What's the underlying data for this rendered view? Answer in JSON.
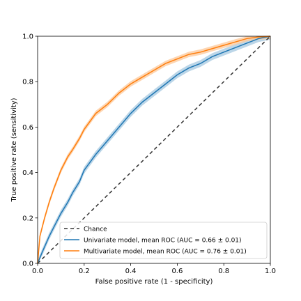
{
  "chart_data": {
    "type": "line",
    "title": "",
    "xlabel": "False positive rate (1 - specificity)",
    "ylabel": "True positive rate (sensitivity)",
    "xlim": [
      0.0,
      1.0
    ],
    "ylim": [
      0.0,
      1.0
    ],
    "xticks": [
      "0.0",
      "0.2",
      "0.4",
      "0.6",
      "0.8",
      "1.0"
    ],
    "yticks": [
      "0.0",
      "0.2",
      "0.4",
      "0.6",
      "0.8",
      "1.0"
    ],
    "grid": false,
    "legend_position": "lower-right",
    "series": [
      {
        "name": "Chance",
        "style": "dashed",
        "color": "#333333",
        "x": [
          0.0,
          1.0
        ],
        "y": [
          0.0,
          1.0
        ]
      },
      {
        "name": "Univariate model, mean ROC (AUC = 0.66 ± 0.01)",
        "style": "solid",
        "color": "#1f77b4",
        "band_color": "#a6c8e0",
        "x": [
          0.0,
          0.02,
          0.05,
          0.08,
          0.1,
          0.13,
          0.15,
          0.18,
          0.2,
          0.25,
          0.3,
          0.35,
          0.4,
          0.45,
          0.5,
          0.55,
          0.6,
          0.65,
          0.7,
          0.75,
          0.8,
          0.85,
          0.9,
          0.95,
          1.0
        ],
        "y": [
          0.0,
          0.05,
          0.12,
          0.18,
          0.22,
          0.27,
          0.31,
          0.36,
          0.41,
          0.48,
          0.54,
          0.6,
          0.66,
          0.71,
          0.75,
          0.79,
          0.83,
          0.86,
          0.88,
          0.91,
          0.93,
          0.95,
          0.97,
          0.99,
          1.0
        ],
        "band": 0.015
      },
      {
        "name": "Multivariate model, mean ROC (AUC = 0.76 ± 0.01)",
        "style": "solid",
        "color": "#ff7f0e",
        "band_color": "#fcc89a",
        "x": [
          0.0,
          0.01,
          0.03,
          0.05,
          0.07,
          0.1,
          0.13,
          0.15,
          0.18,
          0.2,
          0.25,
          0.3,
          0.35,
          0.4,
          0.45,
          0.5,
          0.55,
          0.6,
          0.65,
          0.7,
          0.75,
          0.8,
          0.85,
          0.9,
          0.95,
          1.0
        ],
        "y": [
          0.0,
          0.12,
          0.2,
          0.27,
          0.33,
          0.41,
          0.47,
          0.5,
          0.55,
          0.59,
          0.66,
          0.7,
          0.75,
          0.79,
          0.82,
          0.85,
          0.88,
          0.9,
          0.92,
          0.93,
          0.945,
          0.96,
          0.975,
          0.99,
          0.997,
          1.0
        ],
        "band": 0.012
      }
    ]
  }
}
